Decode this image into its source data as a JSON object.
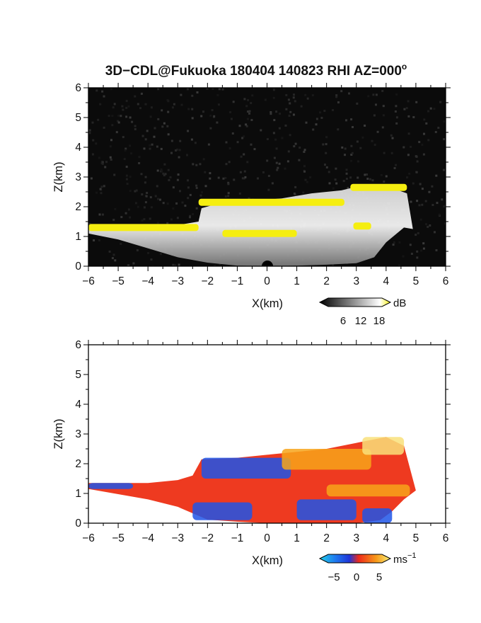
{
  "figure": {
    "title": "3D−CDL@Fukuoka 180404 140823 RHI AZ=000",
    "title_degree": "o"
  },
  "chart_data": [
    {
      "type": "heatmap",
      "variable": "",
      "xlabel": "X(km)",
      "ylabel": "Z(km)",
      "xlim": [
        -6,
        6
      ],
      "ylim": [
        0,
        6
      ],
      "xticks": [
        "−6",
        "−5",
        "−4",
        "−3",
        "−2",
        "−1",
        "0",
        "1",
        "2",
        "3",
        "4",
        "5",
        "6"
      ],
      "yticks": [
        "0",
        "1",
        "2",
        "3",
        "4",
        "5",
        "6"
      ],
      "colorbar": {
        "unit": "dB",
        "ticks": [
          "6",
          "12",
          "18"
        ],
        "range": [
          0,
          20
        ]
      },
      "background": "#0b0b0b",
      "colors": {
        "saturated": "#f5ee10",
        "echo_light": "#eeeeee",
        "echo_dark": "#555555"
      },
      "echo_region": {
        "top_boundary": [
          [
            -6.0,
            1.28
          ],
          [
            -5.0,
            1.3
          ],
          [
            -4.0,
            1.32
          ],
          [
            -3.0,
            1.38
          ],
          [
            -2.3,
            1.5
          ],
          [
            -2.2,
            1.95
          ],
          [
            -1.5,
            2.15
          ],
          [
            -0.5,
            2.2
          ],
          [
            0.5,
            2.28
          ],
          [
            1.5,
            2.45
          ],
          [
            2.5,
            2.55
          ],
          [
            3.2,
            2.72
          ],
          [
            4.0,
            2.7
          ],
          [
            4.7,
            2.45
          ]
        ],
        "bottom_boundary": [
          [
            -6.0,
            1.1
          ],
          [
            -5.0,
            0.9
          ],
          [
            -4.0,
            0.6
          ],
          [
            -3.0,
            0.3
          ],
          [
            -2.0,
            0.12
          ],
          [
            -1.0,
            0.02
          ],
          [
            0.0,
            0.0
          ],
          [
            1.0,
            0.02
          ],
          [
            2.0,
            0.05
          ],
          [
            3.0,
            0.1
          ],
          [
            3.6,
            0.3
          ],
          [
            4.0,
            0.8
          ],
          [
            4.6,
            1.3
          ],
          [
            4.9,
            1.25
          ]
        ],
        "saturated_layers": [
          {
            "x": [
              -6.0,
              -2.3
            ],
            "z": 1.3
          },
          {
            "x": [
              -2.3,
              2.6
            ],
            "z": 2.15
          },
          {
            "x": [
              -1.5,
              1.0
            ],
            "z": 1.1
          },
          {
            "x": [
              2.8,
              4.7
            ],
            "z": 2.65
          },
          {
            "x": [
              2.9,
              3.5
            ],
            "z": 1.35
          }
        ]
      }
    },
    {
      "type": "heatmap",
      "variable": "",
      "xlabel": "X(km)",
      "ylabel": "Z(km)",
      "xlim": [
        -6,
        6
      ],
      "ylim": [
        0,
        6
      ],
      "xticks": [
        "−6",
        "−5",
        "−4",
        "−3",
        "−2",
        "−1",
        "0",
        "1",
        "2",
        "3",
        "4",
        "5",
        "6"
      ],
      "yticks": [
        "0",
        "1",
        "2",
        "3",
        "4",
        "5",
        "6"
      ],
      "colorbar": {
        "unit": "ms",
        "unit_exponent": "−1",
        "ticks": [
          "−5",
          "0",
          "5"
        ],
        "range": [
          -7,
          7
        ]
      },
      "background": "#ffffff",
      "colors": {
        "negative": "#1f55e8",
        "near_zero": "#ee3a20",
        "positive": "#f7a51a",
        "max": "#f9e07a"
      },
      "echo_region": {
        "top_boundary": [
          [
            -6.0,
            1.35
          ],
          [
            -4.0,
            1.35
          ],
          [
            -3.0,
            1.45
          ],
          [
            -2.5,
            1.6
          ],
          [
            -2.2,
            2.15
          ],
          [
            -1.0,
            2.2
          ],
          [
            0.0,
            2.3
          ],
          [
            1.0,
            2.4
          ],
          [
            2.0,
            2.5
          ],
          [
            3.0,
            2.7
          ],
          [
            4.0,
            2.9
          ],
          [
            4.6,
            2.6
          ]
        ],
        "bottom_boundary": [
          [
            -6.0,
            1.15
          ],
          [
            -4.0,
            0.8
          ],
          [
            -3.0,
            0.55
          ],
          [
            -2.0,
            0.12
          ],
          [
            -1.0,
            0.05
          ],
          [
            0.0,
            0.0
          ],
          [
            1.0,
            0.0
          ],
          [
            2.0,
            0.0
          ],
          [
            3.0,
            0.0
          ],
          [
            3.8,
            0.1
          ],
          [
            4.2,
            0.4
          ],
          [
            4.6,
            0.8
          ],
          [
            5.0,
            1.1
          ]
        ],
        "negative_patches": [
          {
            "x": [
              -2.2,
              0.8
            ],
            "z": [
              1.5,
              2.2
            ]
          },
          {
            "x": [
              -2.5,
              -0.5
            ],
            "z": [
              0.1,
              0.7
            ]
          },
          {
            "x": [
              1.0,
              3.0
            ],
            "z": [
              0.1,
              0.8
            ]
          },
          {
            "x": [
              3.2,
              4.2
            ],
            "z": [
              0.0,
              0.5
            ]
          },
          {
            "x": [
              -6.0,
              -4.5
            ],
            "z": [
              1.15,
              1.35
            ]
          }
        ],
        "positive_patches": [
          {
            "x": [
              0.5,
              3.5
            ],
            "z": [
              1.8,
              2.5
            ]
          },
          {
            "x": [
              3.2,
              4.6
            ],
            "z": [
              2.3,
              2.9
            ]
          },
          {
            "x": [
              2.0,
              4.8
            ],
            "z": [
              0.9,
              1.3
            ]
          }
        ]
      }
    }
  ]
}
